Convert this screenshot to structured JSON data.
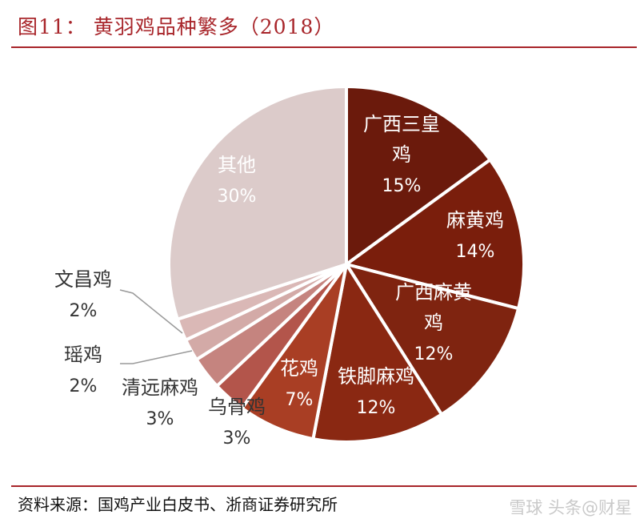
{
  "header": {
    "title": "图11：   黄羽鸡品种繁多（2018）"
  },
  "chart_data": {
    "type": "pie",
    "title": "图11：   黄羽鸡品种繁多（2018）",
    "slices": [
      {
        "label_lines": [
          "广西三皇",
          "鸡"
        ],
        "value": 15,
        "value_label": "15%",
        "color": "#6b1a0c"
      },
      {
        "label_lines": [
          "麻黄鸡"
        ],
        "value": 14,
        "value_label": "14%",
        "color": "#7a1e0c"
      },
      {
        "label_lines": [
          "广西麻黄",
          "鸡"
        ],
        "value": 12,
        "value_label": "12%",
        "color": "#7f2410"
      },
      {
        "label_lines": [
          "铁脚麻鸡"
        ],
        "value": 12,
        "value_label": "12%",
        "color": "#8a2812"
      },
      {
        "label_lines": [
          "花鸡"
        ],
        "value": 7,
        "value_label": "7%",
        "color": "#a93e24"
      },
      {
        "label_lines": [
          "乌骨鸡"
        ],
        "value": 3,
        "value_label": "3%",
        "color": "#b3554b"
      },
      {
        "label_lines": [
          "清远麻鸡"
        ],
        "value": 3,
        "value_label": "3%",
        "color": "#c5847f"
      },
      {
        "label_lines": [
          "瑶鸡"
        ],
        "value": 2,
        "value_label": "2%",
        "color": "#d3aaa7"
      },
      {
        "label_lines": [
          "文昌鸡"
        ],
        "value": 2,
        "value_label": "2%",
        "color": "#dab8b6"
      },
      {
        "label_lines": [
          "其他"
        ],
        "value": 30,
        "value_label": "30%",
        "color": "#dccbca"
      }
    ]
  },
  "footer": {
    "source": "资料来源：国鸡产业白皮书、浙商证券研究所",
    "watermark": "雪球  头条@财星"
  }
}
